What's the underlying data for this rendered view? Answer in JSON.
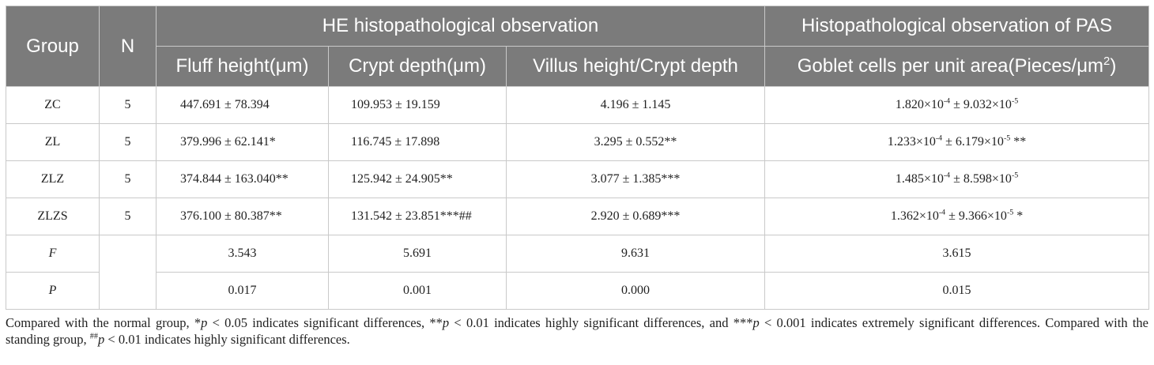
{
  "header": {
    "group": "Group",
    "n": "N",
    "he_title": "HE histopathological observation",
    "pas_title": "Histopathological observation of PAS",
    "fluff_height": "Fluff height(μm)",
    "crypt_depth": "Crypt depth(μm)",
    "villus_ratio": "Villus height/Crypt depth",
    "goblet_prefix": "Goblet cells per unit area(Pieces/μm",
    "goblet_sup": "2",
    "goblet_suffix": ")"
  },
  "rows": [
    {
      "group": "ZC",
      "n": "5",
      "fluff": "447.691 ± 78.394",
      "crypt": "109.953 ± 19.159",
      "ratio": "4.196 ± 1.145",
      "goblet": {
        "m": "1.820×10",
        "me": "-4",
        "sep": " ± 9.032×10",
        "se": "-5",
        "mark": ""
      }
    },
    {
      "group": "ZL",
      "n": "5",
      "fluff": "379.996 ± 62.141*",
      "crypt": "116.745 ± 17.898",
      "ratio": "3.295 ± 0.552**",
      "goblet": {
        "m": "1.233×10",
        "me": "-4",
        "sep": " ± 6.179×10",
        "se": "-5",
        "mark": " **"
      }
    },
    {
      "group": "ZLZ",
      "n": "5",
      "fluff": "374.844 ± 163.040**",
      "crypt": "125.942 ± 24.905**",
      "ratio": "3.077 ± 1.385***",
      "goblet": {
        "m": "1.485×10",
        "me": "-4",
        "sep": " ± 8.598×10",
        "se": "-5",
        "mark": ""
      }
    },
    {
      "group": "ZLZS",
      "n": "5",
      "fluff": "376.100 ± 80.387**",
      "crypt": "131.542 ± 23.851***##",
      "ratio": "2.920 ± 0.689***",
      "goblet": {
        "m": "1.362×10",
        "me": "-4",
        "sep": " ± 9.366×10",
        "se": "-5",
        "mark": " *"
      }
    }
  ],
  "stats": [
    {
      "label": "F",
      "fluff": "3.543",
      "crypt": "5.691",
      "ratio": "9.631",
      "goblet": "3.615"
    },
    {
      "label": "P",
      "fluff": "0.017",
      "crypt": "0.001",
      "ratio": "0.000",
      "goblet": "0.015"
    }
  ],
  "footnote": {
    "t1": "Compared with the normal group, *",
    "p1": "p",
    "t2": " < 0.05 indicates significant differences, **",
    "p2": "p",
    "t3": " < 0.01 indicates highly significant differences, and ***",
    "p3": "p",
    "t4": " < 0.001 indicates extremely significant differences. Compared with the standing group, ",
    "hash": "##",
    "p4": "p",
    "t5": " < 0.01 indicates highly significant differences."
  }
}
